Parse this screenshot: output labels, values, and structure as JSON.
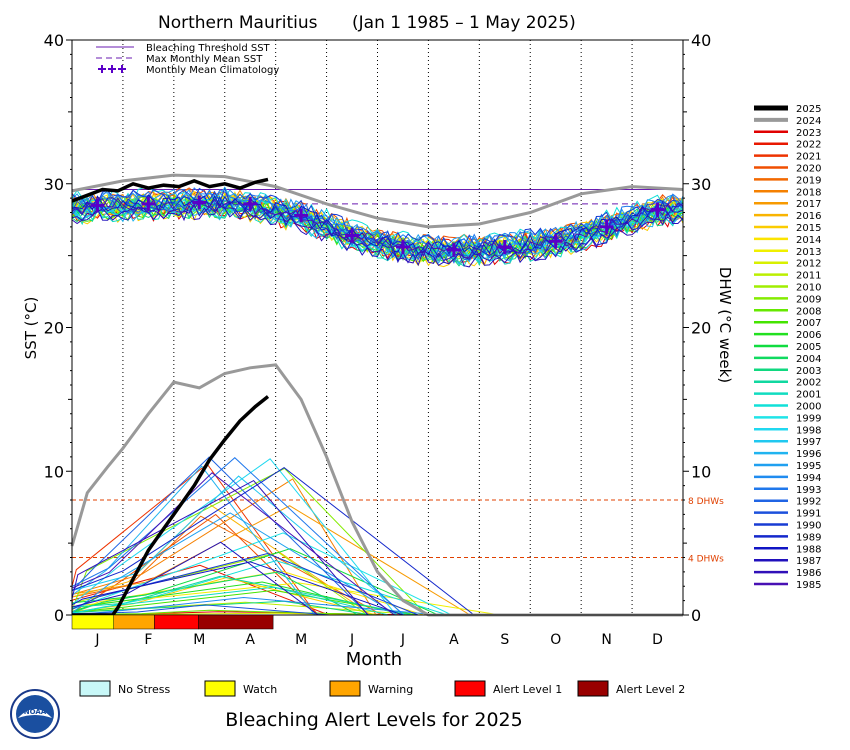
{
  "chart_data": {
    "type": "line",
    "title": "Northern Mauritius",
    "date_range": "(Jan 1 1985 – 1 May 2025)",
    "xlabel": "Month",
    "ylabel_left": "SST (°C)",
    "ylabel_right": "DHW (°C week)",
    "ylim": [
      0,
      40
    ],
    "xlim": [
      0,
      12
    ],
    "y_ticks": [
      "0",
      "10",
      "20",
      "30",
      "40"
    ],
    "months": [
      "J",
      "F",
      "M",
      "A",
      "M",
      "J",
      "J",
      "A",
      "S",
      "O",
      "N",
      "D"
    ],
    "bleaching_threshold_sst": 29.6,
    "max_monthly_mean_sst": 28.6,
    "monthly_mean_climatology": [
      28.5,
      28.6,
      28.7,
      28.6,
      27.8,
      26.4,
      25.6,
      25.4,
      25.6,
      26.0,
      27.0,
      28.2
    ],
    "dhw_reference_lines": [
      {
        "value": 8,
        "label": "8 DHWs"
      },
      {
        "value": 4,
        "label": "4 DHWs"
      }
    ],
    "legend_lines": [
      {
        "label": "Bleaching Threshold SST",
        "color": "#6a1bb0",
        "style": "solid"
      },
      {
        "label": "Max Monthly Mean SST",
        "color": "#6a1bb0",
        "style": "dashed"
      },
      {
        "label": "Monthly Mean Climatology",
        "color": "#5a00c8",
        "style": "plus"
      }
    ],
    "series_2025": {
      "name": "2025",
      "sst_x": [
        0,
        0.3,
        0.6,
        0.9,
        1.2,
        1.5,
        1.8,
        2.1,
        2.4,
        2.7,
        3.0,
        3.3,
        3.6,
        3.85
      ],
      "sst_y": [
        28.8,
        29.2,
        29.6,
        29.5,
        30.0,
        29.7,
        29.9,
        29.8,
        30.2,
        29.8,
        30.0,
        29.7,
        30.1,
        30.3
      ],
      "dhw_x": [
        0,
        0.8,
        0.9,
        1.2,
        1.5,
        1.8,
        2.1,
        2.4,
        2.7,
        3.0,
        3.3,
        3.6,
        3.85
      ],
      "dhw_y": [
        0,
        0,
        0.5,
        2.5,
        4.5,
        6.0,
        7.5,
        9.0,
        10.8,
        12.2,
        13.5,
        14.5,
        15.2
      ]
    },
    "series_2024": {
      "name": "2024",
      "sst_x": [
        0,
        1,
        2,
        3,
        4,
        5,
        6,
        7,
        8,
        9,
        10,
        11,
        12
      ],
      "sst_y": [
        29.5,
        30.2,
        30.6,
        30.5,
        29.8,
        28.6,
        27.6,
        27.0,
        27.2,
        28.0,
        29.3,
        29.8,
        29.6
      ],
      "dhw_x": [
        0,
        0.3,
        0.7,
        1.0,
        1.5,
        2.0,
        2.5,
        3.0,
        3.5,
        4.0,
        4.5,
        5.0,
        5.5,
        6.0,
        6.5,
        7.0,
        7.5,
        8.0,
        9.0,
        10.0,
        11.0,
        12.0
      ],
      "dhw_y": [
        4.8,
        8.5,
        10.3,
        11.6,
        14.0,
        16.2,
        15.8,
        16.8,
        17.2,
        17.4,
        15.0,
        11.0,
        6.5,
        3.0,
        1.0,
        0,
        0,
        0,
        0,
        0,
        0,
        0
      ]
    },
    "year_legend": [
      {
        "year": "2025",
        "color": "#000000"
      },
      {
        "year": "2024",
        "color": "#999999"
      },
      {
        "year": "2023",
        "color": "#e00000"
      },
      {
        "year": "2022",
        "color": "#e81800"
      },
      {
        "year": "2021",
        "color": "#ee3300"
      },
      {
        "year": "2020",
        "color": "#f04f00"
      },
      {
        "year": "2019",
        "color": "#f26800"
      },
      {
        "year": "2018",
        "color": "#f58000"
      },
      {
        "year": "2017",
        "color": "#f79a00"
      },
      {
        "year": "2016",
        "color": "#f9b400"
      },
      {
        "year": "2015",
        "color": "#fbcc00"
      },
      {
        "year": "2014",
        "color": "#fce400"
      },
      {
        "year": "2013",
        "color": "#f0f000"
      },
      {
        "year": "2012",
        "color": "#d8f000"
      },
      {
        "year": "2011",
        "color": "#bcef00"
      },
      {
        "year": "2010",
        "color": "#a0ee00"
      },
      {
        "year": "2009",
        "color": "#84ec00"
      },
      {
        "year": "2008",
        "color": "#66e800"
      },
      {
        "year": "2007",
        "color": "#44e400"
      },
      {
        "year": "2006",
        "color": "#22e020"
      },
      {
        "year": "2005",
        "color": "#10dc40"
      },
      {
        "year": "2004",
        "color": "#10da60"
      },
      {
        "year": "2003",
        "color": "#10d880"
      },
      {
        "year": "2002",
        "color": "#10d8a0"
      },
      {
        "year": "2001",
        "color": "#10dcc0"
      },
      {
        "year": "2000",
        "color": "#10e0d8"
      },
      {
        "year": "1999",
        "color": "#20e4e8"
      },
      {
        "year": "1998",
        "color": "#20d8f0"
      },
      {
        "year": "1997",
        "color": "#20c8f0"
      },
      {
        "year": "1996",
        "color": "#20b4f0"
      },
      {
        "year": "1995",
        "color": "#20a0f0"
      },
      {
        "year": "1994",
        "color": "#208cf0"
      },
      {
        "year": "1993",
        "color": "#2078ec"
      },
      {
        "year": "1992",
        "color": "#2064e4"
      },
      {
        "year": "1991",
        "color": "#1c50dc"
      },
      {
        "year": "1990",
        "color": "#183cd4"
      },
      {
        "year": "1989",
        "color": "#1428cc"
      },
      {
        "year": "1988",
        "color": "#1014c4"
      },
      {
        "year": "1987",
        "color": "#2010bc"
      },
      {
        "year": "1986",
        "color": "#3010b8"
      },
      {
        "year": "1985",
        "color": "#4810b4"
      }
    ],
    "alert_bar_2025": [
      {
        "level": "Watch",
        "from": 0.0,
        "to": 0.82
      },
      {
        "level": "Warning",
        "from": 0.82,
        "to": 1.62
      },
      {
        "level": "Alert Level 1",
        "from": 1.62,
        "to": 2.48
      },
      {
        "level": "Alert Level 2",
        "from": 2.48,
        "to": 3.95
      }
    ]
  },
  "alert_legend": {
    "title": "Bleaching Alert Levels for 2025",
    "items": [
      {
        "label": "No Stress",
        "color": "#c8f8f8"
      },
      {
        "label": "Watch",
        "color": "#ffff00"
      },
      {
        "label": "Warning",
        "color": "#ffa500"
      },
      {
        "label": "Alert Level 1",
        "color": "#ff0000"
      },
      {
        "label": "Alert Level 2",
        "color": "#990000"
      }
    ]
  },
  "logo": {
    "text": "NOAA"
  }
}
